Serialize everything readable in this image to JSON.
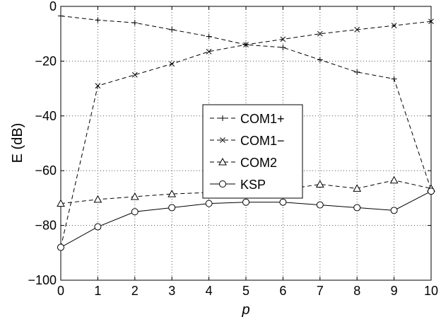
{
  "chart_data": {
    "type": "line",
    "xlabel": "p",
    "ylabel": "E (dB)",
    "x": [
      0,
      1,
      2,
      3,
      4,
      5,
      6,
      7,
      8,
      9,
      10
    ],
    "xlim": [
      0,
      10
    ],
    "ylim": [
      -100,
      0
    ],
    "xticks": [
      "0",
      "1",
      "2",
      "3",
      "4",
      "5",
      "6",
      "7",
      "8",
      "9",
      "10"
    ],
    "yticks": [
      "0",
      "−20",
      "−40",
      "−60",
      "−80",
      "−100"
    ],
    "ytick_values": [
      0,
      -20,
      -40,
      -60,
      -80,
      -100
    ],
    "grid": true,
    "legend_position": "center",
    "series": [
      {
        "name": "COM1+",
        "marker": "plus",
        "line": "dashed",
        "values": [
          -3.5,
          -5,
          -6,
          -8.5,
          -11,
          -14,
          -15,
          -19.5,
          -24,
          -26.5,
          -67
        ]
      },
      {
        "name": "COM1−",
        "marker": "x",
        "line": "dashed",
        "values": [
          -88,
          -29,
          -25,
          -21,
          -16.5,
          -14,
          -12,
          -10,
          -8.5,
          -7,
          -5.5
        ]
      },
      {
        "name": "COM2",
        "marker": "triangle",
        "line": "dashed",
        "values": [
          -72,
          -70.5,
          -69.5,
          -68.5,
          -68,
          -67.5,
          -67,
          -65,
          -66.5,
          -63.5,
          -66.5
        ]
      },
      {
        "name": "KSP",
        "marker": "circle",
        "line": "solid",
        "values": [
          -88,
          -80.5,
          -75,
          -73.5,
          -72,
          -71.5,
          -71.5,
          -72.5,
          -73.5,
          -74.5,
          -67.5
        ]
      }
    ]
  }
}
